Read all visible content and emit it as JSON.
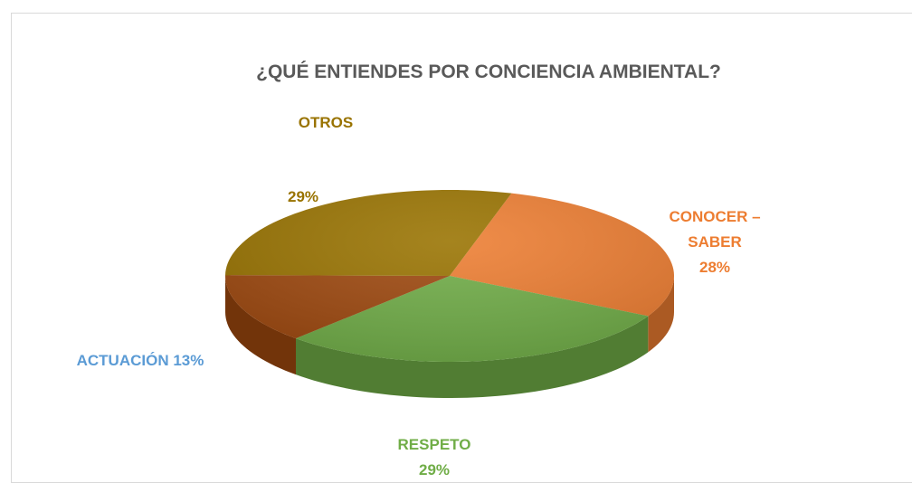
{
  "chart_data": {
    "type": "pie3d",
    "title": "¿QUÉ ENTIENDES POR CONCIENCIA AMBIENTAL?",
    "categories": [
      "CONOCER – SABER",
      "RESPETO",
      "ACTUACIÓN",
      "OTROS"
    ],
    "values": [
      28,
      29,
      13,
      29
    ],
    "value_labels": [
      "28%",
      "29%",
      "13%",
      "29%"
    ],
    "colors": [
      "#ed7d31",
      "#70ad47",
      "#9e480e",
      "#997300"
    ],
    "label_colors": [
      "#ed7d31",
      "#70ad47",
      "#5b9bd5",
      "#997300"
    ]
  }
}
